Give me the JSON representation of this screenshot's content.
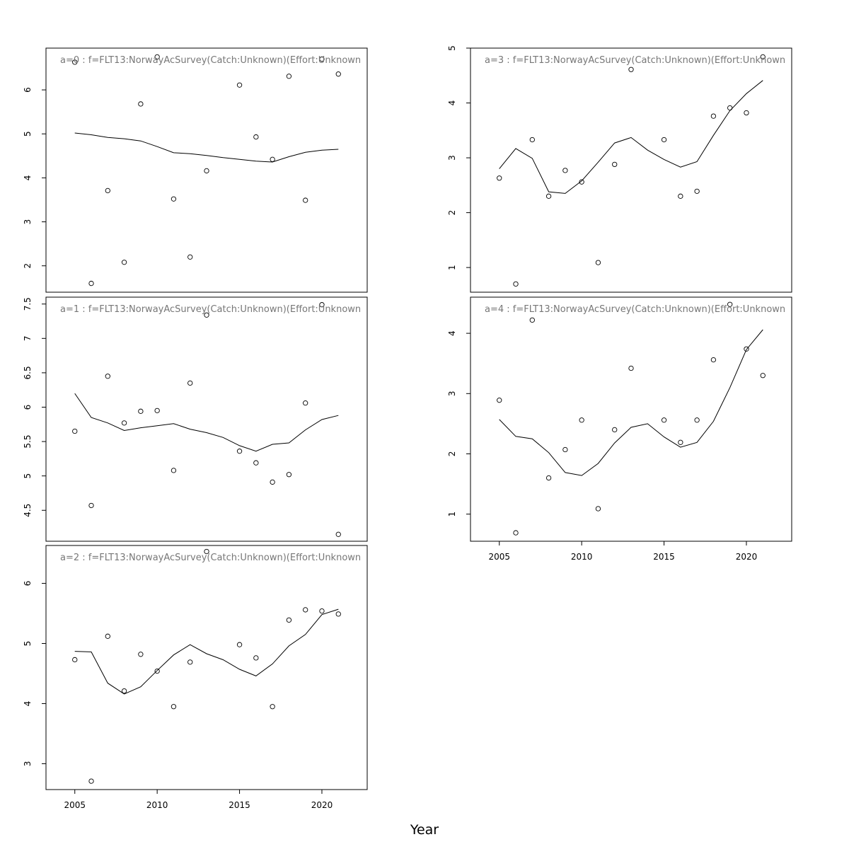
{
  "xlabel": "Year",
  "chart_data": [
    {
      "type": "scatter",
      "title": "a=0  :  f=FLT13:NorwayAcSurvey(Catch:Unknown)(Effort:Unknown",
      "xlim": [
        2003.25,
        2022.75
      ],
      "ylim": [
        1.4,
        6.95
      ],
      "yticks": [
        2,
        3,
        4,
        5,
        6
      ],
      "x_axis_shown": false,
      "points": [
        [
          2005,
          6.63
        ],
        [
          2006,
          1.6
        ],
        [
          2007,
          3.71
        ],
        [
          2008,
          2.08
        ],
        [
          2009,
          5.68
        ],
        [
          2010,
          6.75
        ],
        [
          2011,
          3.52
        ],
        [
          2012,
          2.2
        ],
        [
          2013,
          4.16
        ],
        [
          2015,
          6.11
        ],
        [
          2016,
          4.93
        ],
        [
          2017,
          4.42
        ],
        [
          2018,
          6.31
        ],
        [
          2019,
          3.49
        ],
        [
          2020,
          6.7
        ],
        [
          2021,
          6.36
        ]
      ],
      "fit": [
        [
          2005,
          5.02
        ],
        [
          2006,
          4.98
        ],
        [
          2007,
          4.92
        ],
        [
          2008,
          4.89
        ],
        [
          2009,
          4.84
        ],
        [
          2010,
          4.71
        ],
        [
          2011,
          4.57
        ],
        [
          2012,
          4.55
        ],
        [
          2013,
          4.51
        ],
        [
          2014,
          4.46
        ],
        [
          2015,
          4.42
        ],
        [
          2016,
          4.38
        ],
        [
          2017,
          4.36
        ],
        [
          2018,
          4.48
        ],
        [
          2019,
          4.58
        ],
        [
          2020,
          4.63
        ],
        [
          2021,
          4.65
        ]
      ]
    },
    {
      "type": "scatter",
      "title": "a=1  :  f=FLT13:NorwayAcSurvey(Catch:Unknown)(Effort:Unknown",
      "xlim": [
        2003.25,
        2022.75
      ],
      "ylim": [
        4.05,
        7.6
      ],
      "yticks": [
        4.5,
        5.0,
        5.5,
        6.0,
        6.5,
        7.0,
        7.5
      ],
      "x_axis_shown": false,
      "points": [
        [
          2005,
          5.65
        ],
        [
          2006,
          4.57
        ],
        [
          2007,
          6.45
        ],
        [
          2008,
          5.77
        ],
        [
          2009,
          5.94
        ],
        [
          2010,
          5.95
        ],
        [
          2011,
          5.08
        ],
        [
          2012,
          6.35
        ],
        [
          2013,
          7.34
        ],
        [
          2015,
          5.36
        ],
        [
          2016,
          5.19
        ],
        [
          2017,
          4.91
        ],
        [
          2018,
          5.02
        ],
        [
          2019,
          6.06
        ],
        [
          2020,
          7.49
        ],
        [
          2021,
          4.15
        ]
      ],
      "fit": [
        [
          2005,
          6.2
        ],
        [
          2006,
          5.85
        ],
        [
          2007,
          5.77
        ],
        [
          2008,
          5.66
        ],
        [
          2009,
          5.7
        ],
        [
          2010,
          5.73
        ],
        [
          2011,
          5.76
        ],
        [
          2012,
          5.68
        ],
        [
          2013,
          5.63
        ],
        [
          2014,
          5.56
        ],
        [
          2015,
          5.44
        ],
        [
          2016,
          5.36
        ],
        [
          2017,
          5.46
        ],
        [
          2018,
          5.48
        ],
        [
          2019,
          5.67
        ],
        [
          2020,
          5.82
        ],
        [
          2021,
          5.88
        ]
      ]
    },
    {
      "type": "scatter",
      "title": "a=2  :  f=FLT13:NorwayAcSurvey(Catch:Unknown)(Effort:Unknown",
      "xlim": [
        2003.25,
        2022.75
      ],
      "ylim": [
        2.57,
        6.63
      ],
      "yticks": [
        3,
        4,
        5,
        6
      ],
      "x_axis_shown": true,
      "xticks": [
        2005,
        2010,
        2015,
        2020
      ],
      "points": [
        [
          2005,
          4.73
        ],
        [
          2006,
          2.71
        ],
        [
          2007,
          5.12
        ],
        [
          2008,
          4.21
        ],
        [
          2009,
          4.82
        ],
        [
          2010,
          4.54
        ],
        [
          2011,
          3.95
        ],
        [
          2012,
          4.69
        ],
        [
          2013,
          6.53
        ],
        [
          2015,
          4.98
        ],
        [
          2016,
          4.76
        ],
        [
          2017,
          3.95
        ],
        [
          2018,
          5.39
        ],
        [
          2019,
          5.56
        ],
        [
          2020,
          5.54
        ],
        [
          2021,
          5.49
        ]
      ],
      "fit": [
        [
          2005,
          4.87
        ],
        [
          2006,
          4.86
        ],
        [
          2007,
          4.34
        ],
        [
          2008,
          4.16
        ],
        [
          2009,
          4.28
        ],
        [
          2010,
          4.55
        ],
        [
          2011,
          4.81
        ],
        [
          2012,
          4.98
        ],
        [
          2013,
          4.83
        ],
        [
          2014,
          4.73
        ],
        [
          2015,
          4.57
        ],
        [
          2016,
          4.46
        ],
        [
          2017,
          4.66
        ],
        [
          2018,
          4.96
        ],
        [
          2019,
          5.15
        ],
        [
          2020,
          5.48
        ],
        [
          2021,
          5.57
        ]
      ]
    },
    {
      "type": "scatter",
      "title": "a=3  :  f=FLT13:NorwayAcSurvey(Catch:Unknown)(Effort:Unknown",
      "xlim": [
        2003.25,
        2022.75
      ],
      "ylim": [
        0.55,
        5.0
      ],
      "yticks": [
        1,
        2,
        3,
        4,
        5
      ],
      "x_axis_shown": false,
      "points": [
        [
          2005,
          2.63
        ],
        [
          2006,
          0.7
        ],
        [
          2007,
          3.33
        ],
        [
          2008,
          2.3
        ],
        [
          2009,
          2.77
        ],
        [
          2010,
          2.56
        ],
        [
          2011,
          1.09
        ],
        [
          2012,
          2.88
        ],
        [
          2013,
          4.61
        ],
        [
          2015,
          3.33
        ],
        [
          2016,
          2.3
        ],
        [
          2017,
          2.39
        ],
        [
          2018,
          3.76
        ],
        [
          2019,
          3.91
        ],
        [
          2020,
          3.82
        ],
        [
          2021,
          4.84
        ]
      ],
      "fit": [
        [
          2005,
          2.8
        ],
        [
          2006,
          3.17
        ],
        [
          2007,
          2.99
        ],
        [
          2008,
          2.38
        ],
        [
          2009,
          2.35
        ],
        [
          2010,
          2.58
        ],
        [
          2011,
          2.92
        ],
        [
          2012,
          3.27
        ],
        [
          2013,
          3.37
        ],
        [
          2014,
          3.14
        ],
        [
          2015,
          2.97
        ],
        [
          2016,
          2.83
        ],
        [
          2017,
          2.93
        ],
        [
          2018,
          3.41
        ],
        [
          2019,
          3.86
        ],
        [
          2020,
          4.17
        ],
        [
          2021,
          4.41
        ]
      ]
    },
    {
      "type": "scatter",
      "title": "a=4  :  f=FLT13:NorwayAcSurvey(Catch:Unknown)(Effort:Unknown",
      "xlim": [
        2003.25,
        2022.75
      ],
      "ylim": [
        0.55,
        4.6
      ],
      "yticks": [
        1,
        2,
        3,
        4
      ],
      "x_axis_shown": true,
      "xticks": [
        2005,
        2010,
        2015,
        2020
      ],
      "points": [
        [
          2005,
          2.89
        ],
        [
          2006,
          0.69
        ],
        [
          2007,
          4.22
        ],
        [
          2008,
          1.6
        ],
        [
          2009,
          2.07
        ],
        [
          2010,
          2.56
        ],
        [
          2011,
          1.09
        ],
        [
          2012,
          2.4
        ],
        [
          2013,
          3.42
        ],
        [
          2015,
          2.56
        ],
        [
          2016,
          2.19
        ],
        [
          2017,
          2.56
        ],
        [
          2018,
          3.56
        ],
        [
          2019,
          4.48
        ],
        [
          2020,
          3.74
        ],
        [
          2021,
          3.3
        ]
      ],
      "fit": [
        [
          2005,
          2.57
        ],
        [
          2006,
          2.29
        ],
        [
          2007,
          2.25
        ],
        [
          2008,
          2.02
        ],
        [
          2009,
          1.69
        ],
        [
          2010,
          1.64
        ],
        [
          2011,
          1.84
        ],
        [
          2012,
          2.18
        ],
        [
          2013,
          2.44
        ],
        [
          2014,
          2.5
        ],
        [
          2015,
          2.28
        ],
        [
          2016,
          2.11
        ],
        [
          2017,
          2.19
        ],
        [
          2018,
          2.54
        ],
        [
          2019,
          3.1
        ],
        [
          2020,
          3.73
        ],
        [
          2021,
          4.06
        ]
      ]
    }
  ]
}
